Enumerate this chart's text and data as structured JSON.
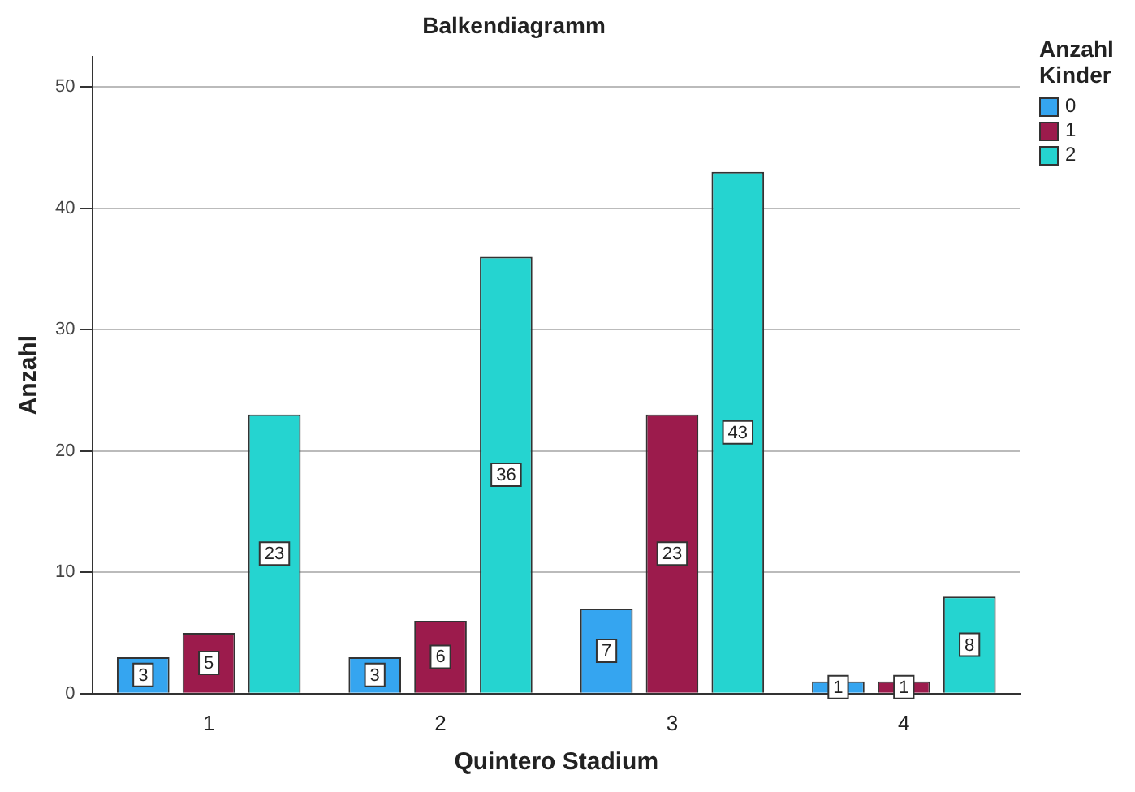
{
  "chart_data": {
    "type": "bar",
    "title": "Balkendiagramm",
    "xlabel": "Quintero Stadium",
    "ylabel": "Anzahl",
    "legend_title": "Anzahl Kinder",
    "categories": [
      "1",
      "2",
      "3",
      "4"
    ],
    "series": [
      {
        "name": "0",
        "color": "#35a5f0",
        "values": [
          3,
          3,
          7,
          1
        ]
      },
      {
        "name": "1",
        "color": "#9c1b4c",
        "values": [
          5,
          6,
          23,
          1
        ]
      },
      {
        "name": "2",
        "color": "#25d4d0",
        "values": [
          23,
          36,
          43,
          8
        ]
      }
    ],
    "ylim": [
      0,
      52.5
    ],
    "yticks": [
      0,
      10,
      20,
      30,
      40,
      50
    ],
    "grid": "y",
    "legend": "top right",
    "data_labels": true
  }
}
